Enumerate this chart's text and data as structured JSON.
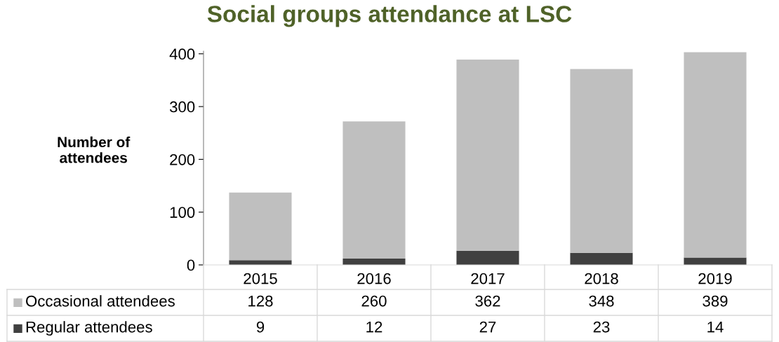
{
  "chart_data": {
    "type": "bar",
    "stacked": true,
    "title": "Social groups attendance at LSC",
    "ylabel": "Number of\nattendees",
    "categories": [
      "2015",
      "2016",
      "2017",
      "2018",
      "2019"
    ],
    "series": [
      {
        "name": "Regular attendees",
        "color": "#404040",
        "values": [
          9,
          12,
          27,
          23,
          14
        ]
      },
      {
        "name": "Occasional attendees",
        "color": "#bfbfbf",
        "values": [
          128,
          260,
          362,
          348,
          389
        ]
      }
    ],
    "ylim": [
      0,
      405
    ],
    "yticks": [
      0,
      100,
      200,
      300,
      400
    ],
    "grid": false,
    "legend": "bottom",
    "data_labels": true
  }
}
